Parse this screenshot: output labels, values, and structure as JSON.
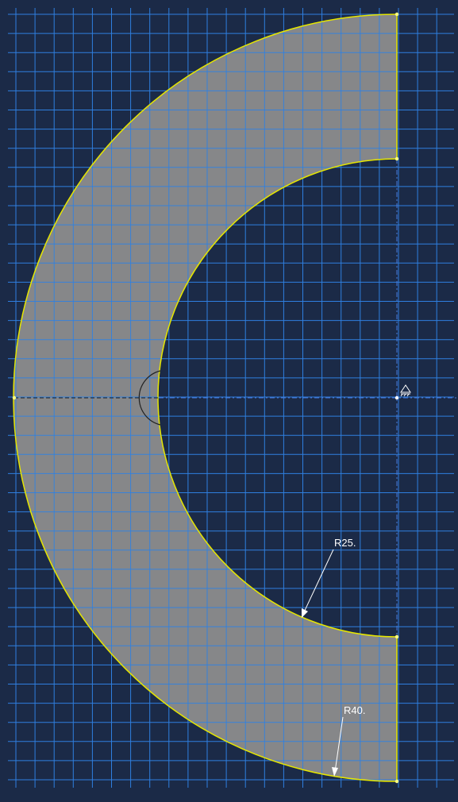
{
  "viewport": {
    "background_color": "#1b2a47",
    "grid_color": "#2f7fe0",
    "part_fill_color": "#8f8f8f",
    "edge_color": "#e6e600",
    "construction_line_color": "#5a6fb0"
  },
  "sketch": {
    "dimensions": [
      {
        "label": "R25."
      },
      {
        "label": "R40."
      }
    ],
    "origin_icon": "fixed-origin-icon"
  }
}
